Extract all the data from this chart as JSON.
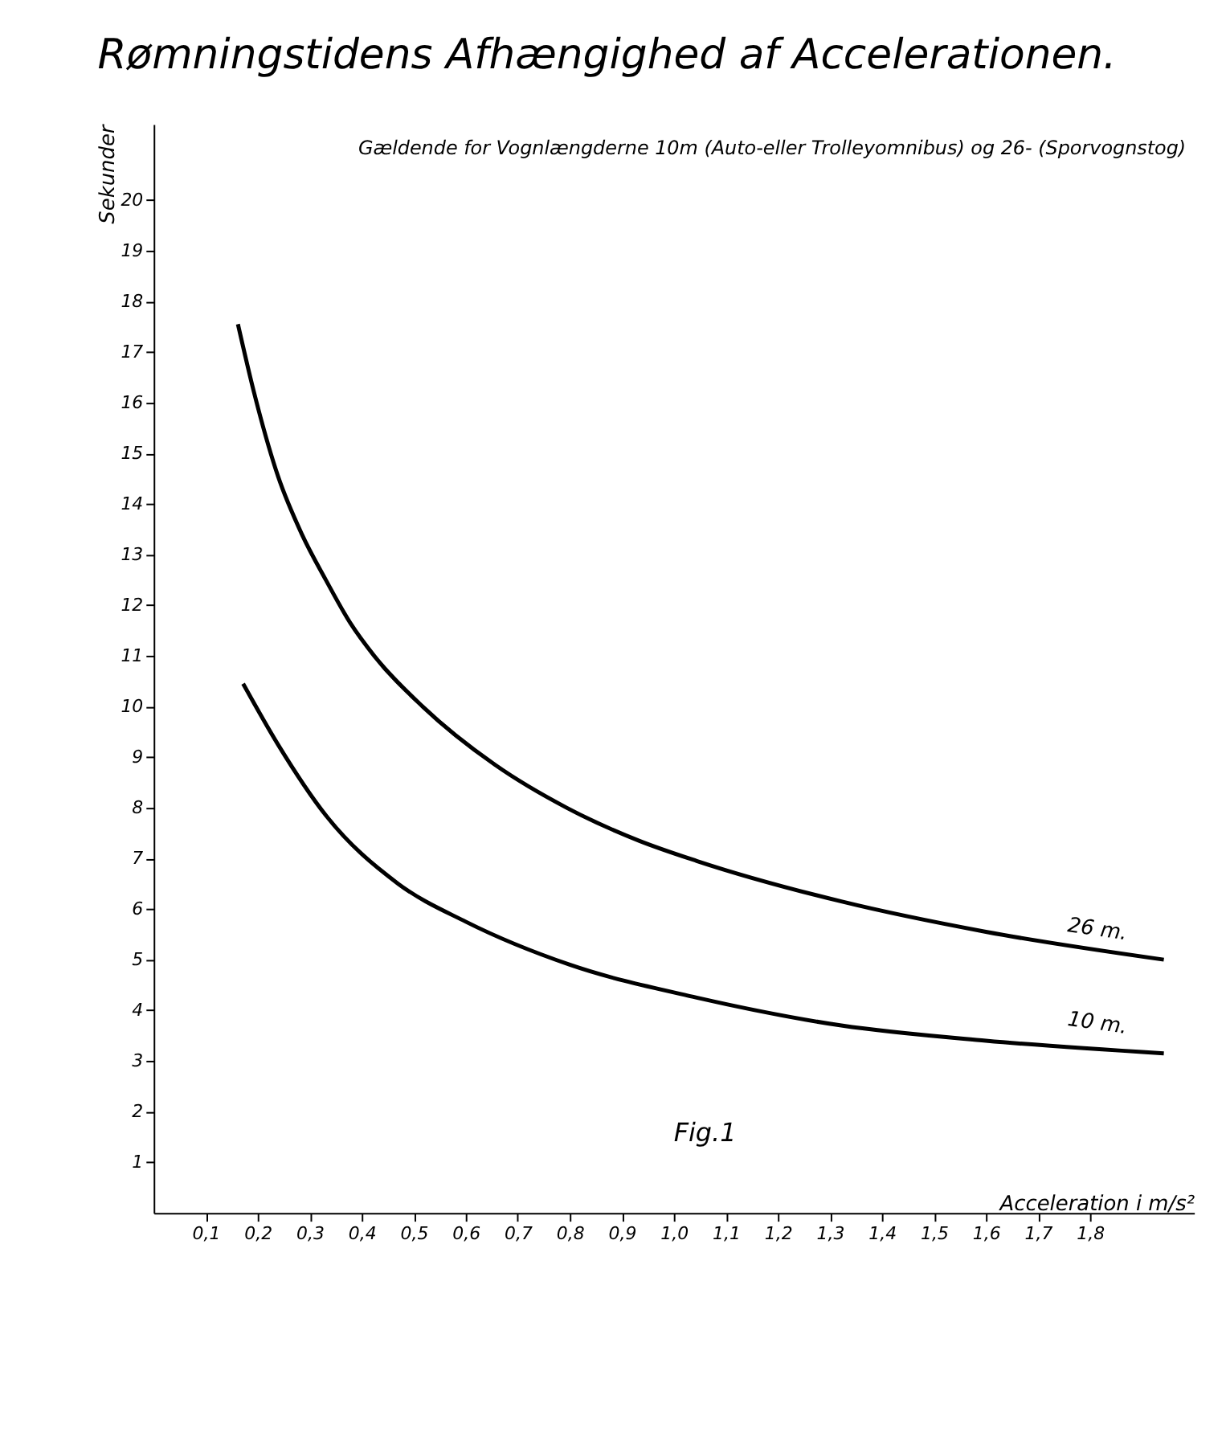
{
  "chart_data": {
    "type": "line",
    "title": "Rømningstidens Afhængighed af Accelerationen.",
    "subtitle": "Gældende for Vognlængderne 10m (Auto-eller Trolleyomnibus) og 26- (Sporvognstog)",
    "xlabel": "Acceleration i m/s²",
    "ylabel": "Sekunder",
    "annotations": [
      "Fig.1"
    ],
    "xlim": [
      0,
      2.0
    ],
    "ylim": [
      0,
      21.5
    ],
    "xticks": [
      {
        "value": 0.1,
        "label": "0,1"
      },
      {
        "value": 0.2,
        "label": "0,2"
      },
      {
        "value": 0.3,
        "label": "0,3"
      },
      {
        "value": 0.4,
        "label": "0,4"
      },
      {
        "value": 0.5,
        "label": "0,5"
      },
      {
        "value": 0.6,
        "label": "0,6"
      },
      {
        "value": 0.7,
        "label": "0,7"
      },
      {
        "value": 0.8,
        "label": "0,8"
      },
      {
        "value": 0.9,
        "label": "0,9"
      },
      {
        "value": 1.0,
        "label": "1,0"
      },
      {
        "value": 1.1,
        "label": "1,1"
      },
      {
        "value": 1.2,
        "label": "1,2"
      },
      {
        "value": 1.3,
        "label": "1,3"
      },
      {
        "value": 1.4,
        "label": "1,4"
      },
      {
        "value": 1.5,
        "label": "1,5"
      },
      {
        "value": 1.6,
        "label": "1,6"
      },
      {
        "value": 1.7,
        "label": "1,7"
      },
      {
        "value": 1.8,
        "label": "1,8"
      }
    ],
    "yticks": [
      1,
      2,
      3,
      4,
      5,
      6,
      7,
      8,
      9,
      10,
      11,
      12,
      13,
      14,
      15,
      16,
      17,
      18,
      19,
      20
    ],
    "grid": false,
    "marker": "none",
    "line_style": "solid",
    "series": [
      {
        "name": "26 m.",
        "color": "#000000",
        "x": [
          0.162,
          0.193,
          0.239,
          0.285,
          0.331,
          0.378,
          0.424,
          0.517,
          0.656,
          0.794,
          0.933,
          1.044,
          1.322,
          1.6,
          1.942
        ],
        "values": [
          17.55,
          16.2,
          14.55,
          13.4,
          12.5,
          11.65,
          11.0,
          10.0,
          8.85,
          8.0,
          7.35,
          6.95,
          6.15,
          5.55,
          5.0
        ]
      },
      {
        "name": "10 m.",
        "color": "#000000",
        "x": [
          0.172,
          0.239,
          0.331,
          0.47,
          0.6,
          0.8,
          1.044,
          1.322,
          1.6,
          1.942
        ],
        "values": [
          10.45,
          9.25,
          7.85,
          6.5,
          5.75,
          4.9,
          4.25,
          3.7,
          3.4,
          3.15
        ]
      }
    ]
  }
}
